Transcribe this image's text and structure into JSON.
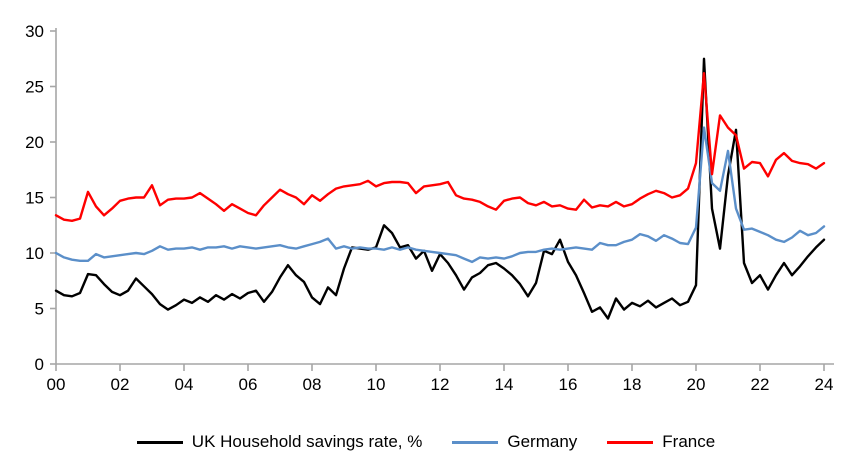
{
  "chart_data": {
    "type": "line",
    "title": "",
    "frequency": "quarterly",
    "x_start_year": 2000,
    "xlim": [
      2000,
      2024.4
    ],
    "ylim": [
      0,
      30
    ],
    "y_ticks": [
      0,
      5,
      10,
      15,
      20,
      25,
      30
    ],
    "x_tick_years": [
      2000,
      2002,
      2004,
      2006,
      2008,
      2010,
      2012,
      2014,
      2016,
      2018,
      2020,
      2022,
      2024
    ],
    "x_tick_labels": [
      "00",
      "02",
      "04",
      "06",
      "08",
      "10",
      "12",
      "14",
      "16",
      "18",
      "20",
      "22",
      "24"
    ],
    "grid": false,
    "legend_position": "bottom",
    "axis_color": "#a6a6a6",
    "series": [
      {
        "name": "UK Household savings rate, %",
        "color": "#000000",
        "values": [
          6.6,
          6.2,
          6.1,
          6.4,
          8.1,
          8.0,
          7.2,
          6.5,
          6.2,
          6.6,
          7.7,
          7.0,
          6.3,
          5.4,
          4.9,
          5.3,
          5.8,
          5.5,
          6.0,
          5.6,
          6.2,
          5.8,
          6.3,
          5.9,
          6.4,
          6.6,
          5.6,
          6.5,
          7.8,
          8.9,
          8.0,
          7.4,
          6.0,
          5.4,
          6.9,
          6.2,
          8.6,
          10.5,
          10.4,
          10.3,
          10.5,
          12.5,
          11.8,
          10.5,
          10.7,
          9.5,
          10.2,
          8.4,
          9.9,
          9.1,
          8.0,
          6.7,
          7.8,
          8.2,
          8.9,
          9.1,
          8.6,
          8.0,
          7.2,
          6.1,
          7.3,
          10.2,
          9.9,
          11.2,
          9.2,
          8.0,
          6.4,
          4.7,
          5.1,
          4.1,
          5.9,
          4.9,
          5.5,
          5.2,
          5.7,
          5.1,
          5.5,
          5.9,
          5.3,
          5.6,
          7.1,
          27.5,
          14.0,
          10.4,
          17.0,
          21.1,
          9.1,
          7.3,
          8.0,
          6.7,
          8.0,
          9.1,
          8.0,
          8.8,
          9.7,
          10.5,
          11.2
        ]
      },
      {
        "name": "Germany",
        "color": "#5B8FC9",
        "values": [
          10.0,
          9.6,
          9.4,
          9.3,
          9.3,
          9.9,
          9.6,
          9.7,
          9.8,
          9.9,
          10.0,
          9.9,
          10.2,
          10.6,
          10.3,
          10.4,
          10.4,
          10.5,
          10.3,
          10.5,
          10.5,
          10.6,
          10.4,
          10.6,
          10.5,
          10.4,
          10.5,
          10.6,
          10.7,
          10.5,
          10.4,
          10.6,
          10.8,
          11.0,
          11.3,
          10.4,
          10.6,
          10.4,
          10.5,
          10.4,
          10.4,
          10.3,
          10.5,
          10.3,
          10.5,
          10.3,
          10.2,
          10.1,
          10.0,
          9.9,
          9.8,
          9.5,
          9.2,
          9.6,
          9.5,
          9.6,
          9.5,
          9.7,
          10.0,
          10.1,
          10.1,
          10.3,
          10.4,
          10.3,
          10.4,
          10.5,
          10.4,
          10.3,
          10.9,
          10.7,
          10.7,
          11.0,
          11.2,
          11.7,
          11.5,
          11.1,
          11.6,
          11.3,
          10.9,
          10.8,
          12.3,
          21.3,
          16.3,
          15.6,
          19.2,
          14.0,
          12.1,
          12.2,
          11.9,
          11.6,
          11.2,
          11.0,
          11.4,
          12.0,
          11.6,
          11.8,
          12.4
        ]
      },
      {
        "name": "France",
        "color": "#FF0000",
        "values": [
          13.4,
          13.0,
          12.9,
          13.1,
          15.5,
          14.2,
          13.4,
          14.0,
          14.7,
          14.9,
          15.0,
          15.0,
          16.1,
          14.3,
          14.8,
          14.9,
          14.9,
          15.0,
          15.4,
          14.9,
          14.4,
          13.8,
          14.4,
          14.0,
          13.6,
          13.4,
          14.3,
          15.0,
          15.7,
          15.3,
          15.0,
          14.4,
          15.2,
          14.7,
          15.3,
          15.8,
          16.0,
          16.1,
          16.2,
          16.5,
          16.0,
          16.3,
          16.4,
          16.4,
          16.3,
          15.4,
          16.0,
          16.1,
          16.2,
          16.4,
          15.2,
          14.9,
          14.8,
          14.6,
          14.2,
          13.9,
          14.7,
          14.9,
          15.0,
          14.5,
          14.3,
          14.6,
          14.2,
          14.3,
          14.0,
          13.9,
          14.8,
          14.1,
          14.3,
          14.2,
          14.6,
          14.2,
          14.4,
          14.9,
          15.3,
          15.6,
          15.4,
          15.0,
          15.2,
          15.8,
          18.1,
          26.2,
          17.1,
          22.4,
          21.3,
          20.6,
          17.6,
          18.2,
          18.1,
          16.9,
          18.4,
          19.0,
          18.3,
          18.1,
          18.0,
          17.6,
          18.1
        ]
      }
    ]
  }
}
